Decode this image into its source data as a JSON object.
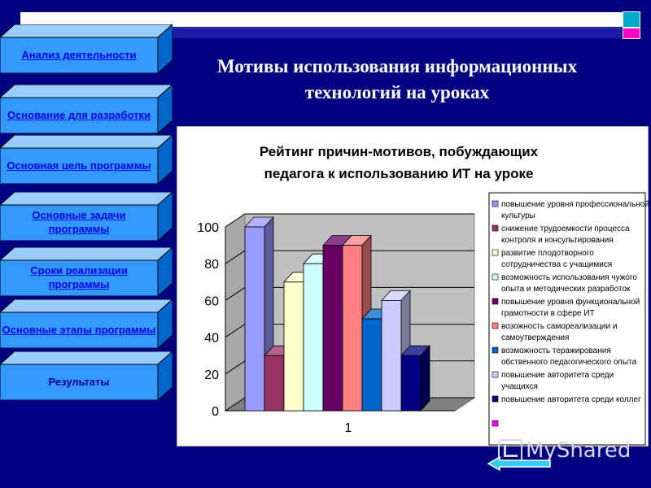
{
  "nav": {
    "items": [
      {
        "label": "Анализ деятельности",
        "link": true
      },
      {
        "label": "Основание для разработки",
        "link": true
      },
      {
        "label": "Основная цель программы",
        "link": true
      },
      {
        "label": "Основные задачи программы",
        "link": true
      },
      {
        "label": "Сроки реализации программы",
        "link": true
      },
      {
        "label": "Основные этапы программы",
        "link": true
      },
      {
        "label": "Результаты",
        "link": false
      }
    ]
  },
  "slide": {
    "title_line1": "Мотивы использования информационных",
    "title_line2": "технологий на уроках"
  },
  "watermark": {
    "text": "MyShared"
  },
  "colors": {
    "background": "#000080",
    "nav_face": "#3399ff",
    "link": "#0000ee"
  },
  "chart_data": {
    "type": "bar",
    "title_line1": "Рейтинг причин-мотивов, побуждающих",
    "title_line2": "педагога к использованию ИТ на уроке",
    "categories": [
      "1"
    ],
    "ylim": [
      0,
      100
    ],
    "yticks": [
      0,
      20,
      40,
      60,
      80,
      100
    ],
    "grid": true,
    "legend_position": "right",
    "series": [
      {
        "name": "повышение уровня профессиональной культуры",
        "legend_lines": [
          "повышение уровня профессиональной",
          "культуры"
        ],
        "value": 100,
        "color": "#9999ff"
      },
      {
        "name": "снижение трудоемкости процесса контроля и консультирования",
        "legend_lines": [
          "снижение трудоемкости процесса",
          "контроля и консультирования"
        ],
        "value": 30,
        "color": "#993366"
      },
      {
        "name": "развитие плодотворного сотрудничества с учащимися",
        "legend_lines": [
          "развитие плодотворного",
          "сотрудничества с учащимися"
        ],
        "value": 70,
        "color": "#ffffcc"
      },
      {
        "name": "возможность использования чужого опыта и методических разработок",
        "legend_lines": [
          "возможность использования чужого",
          "опыта и методических разработок"
        ],
        "value": 80,
        "color": "#ccffff"
      },
      {
        "name": "повышение уровня функциональной грамотности в сфере ИТ",
        "legend_lines": [
          "повышение уровня функциональной",
          "грамотности в сфере ИТ"
        ],
        "value": 90,
        "color": "#660066"
      },
      {
        "name": "возожность самореализации и самоутверждения",
        "legend_lines": [
          "возожность самореализации и",
          "самоутверждения"
        ],
        "value": 90,
        "color": "#ff8080"
      },
      {
        "name": "возможность теражирования обственного педагогического опыта",
        "legend_lines": [
          "возможность теражирования",
          "обственного педагогического опыта"
        ],
        "value": 50,
        "color": "#0066cc"
      },
      {
        "name": "повышение авторитета среди учащихся",
        "legend_lines": [
          "повышение авторитета среди",
          "учащихся"
        ],
        "value": 60,
        "color": "#ccccff"
      },
      {
        "name": "повышение авторитета среди коллег",
        "legend_lines": [
          "повышение авторитета среди коллег"
        ],
        "value": 30,
        "color": "#000080"
      },
      {
        "name": "",
        "legend_lines": [],
        "value": null,
        "color": "#ff00ff"
      }
    ]
  }
}
